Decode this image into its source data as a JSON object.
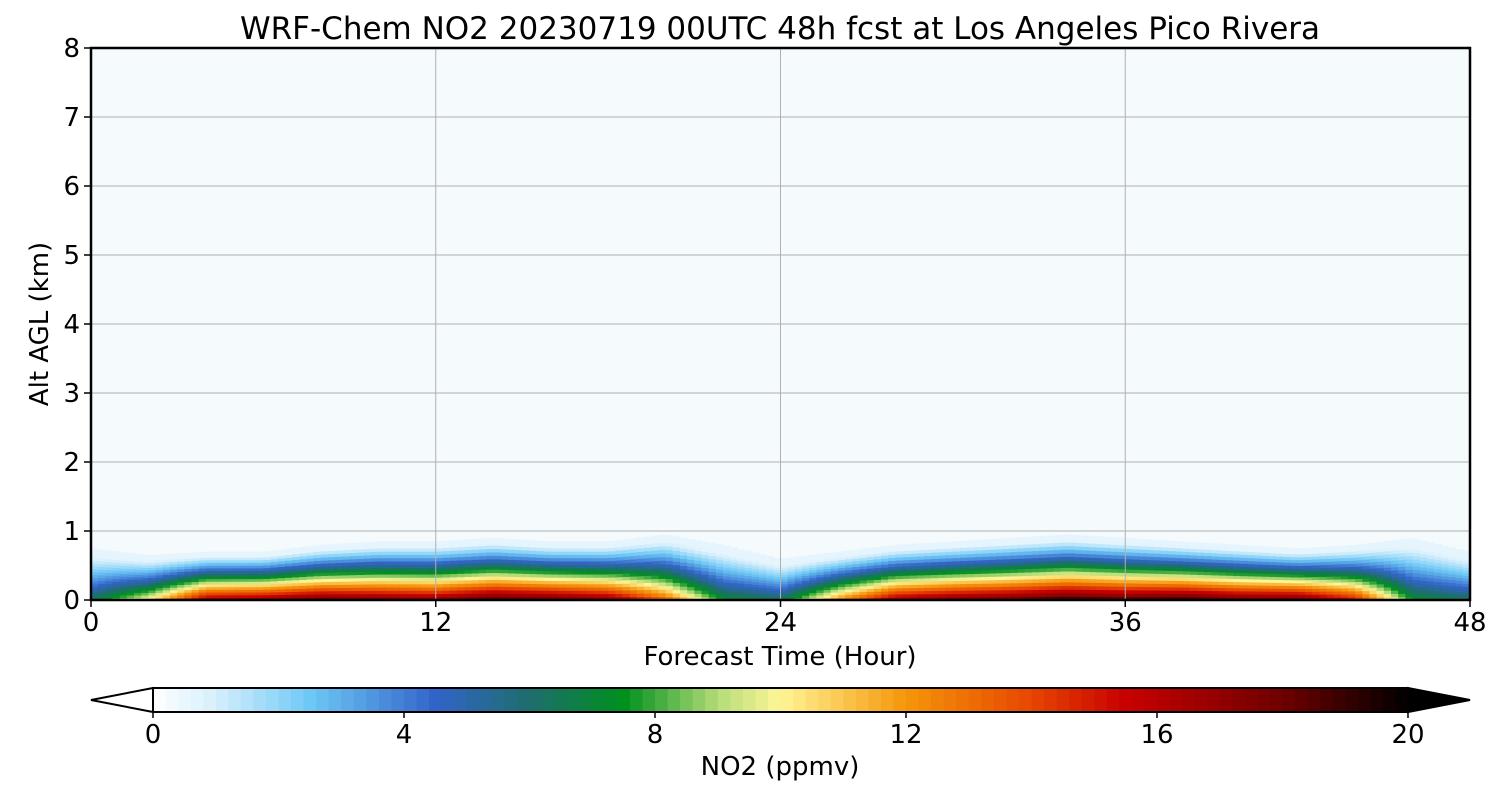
{
  "chart_data": {
    "type": "heatmap",
    "title": "WRF-Chem NO2  20230719 00UTC 48h fcst at Los Angeles Pico Rivera",
    "xlabel": "Forecast Time (Hour)",
    "ylabel": "Alt AGL (km)",
    "xlim": [
      0,
      48
    ],
    "ylim": [
      0,
      8
    ],
    "xticks": [
      0,
      12,
      24,
      36,
      48
    ],
    "yticks": [
      0,
      1,
      2,
      3,
      4,
      5,
      6,
      7,
      8
    ],
    "grid": true,
    "colorbar": {
      "label": "NO2  (ppmv)",
      "range": [
        0,
        20
      ],
      "ticks": [
        0,
        4,
        8,
        12,
        16,
        20
      ],
      "extend": "both",
      "color_stops": [
        {
          "value": 0,
          "color": "#ffffff"
        },
        {
          "value": 1,
          "color": "#d6effc"
        },
        {
          "value": 2.5,
          "color": "#6ec8f6"
        },
        {
          "value": 4.5,
          "color": "#3264c8"
        },
        {
          "value": 6,
          "color": "#1e6e6e"
        },
        {
          "value": 7.5,
          "color": "#00901e"
        },
        {
          "value": 9,
          "color": "#b4dc78"
        },
        {
          "value": 10,
          "color": "#fff596"
        },
        {
          "value": 12,
          "color": "#f5960a"
        },
        {
          "value": 14,
          "color": "#e64600"
        },
        {
          "value": 15.5,
          "color": "#c80000"
        },
        {
          "value": 18,
          "color": "#6e0000"
        },
        {
          "value": 20,
          "color": "#000000"
        }
      ]
    },
    "boundary_layer": {
      "hours": [
        0,
        2,
        4,
        6,
        8,
        10,
        12,
        14,
        16,
        18,
        20,
        22,
        24,
        26,
        28,
        30,
        32,
        34,
        36,
        38,
        40,
        42,
        44,
        46,
        48
      ],
      "top_km": [
        0.75,
        0.65,
        0.7,
        0.7,
        0.8,
        0.85,
        0.85,
        0.9,
        0.85,
        0.85,
        0.95,
        0.8,
        0.6,
        0.7,
        0.8,
        0.85,
        0.9,
        0.95,
        0.9,
        0.85,
        0.8,
        0.75,
        0.8,
        0.9,
        0.7
      ],
      "surface_no2_ppmv": [
        5,
        9,
        15.5,
        16,
        17,
        16.5,
        16,
        17.5,
        17,
        16,
        12,
        6,
        5,
        11,
        15.5,
        16.5,
        17,
        18,
        17.5,
        18,
        17,
        17,
        14,
        6,
        5
      ]
    }
  }
}
